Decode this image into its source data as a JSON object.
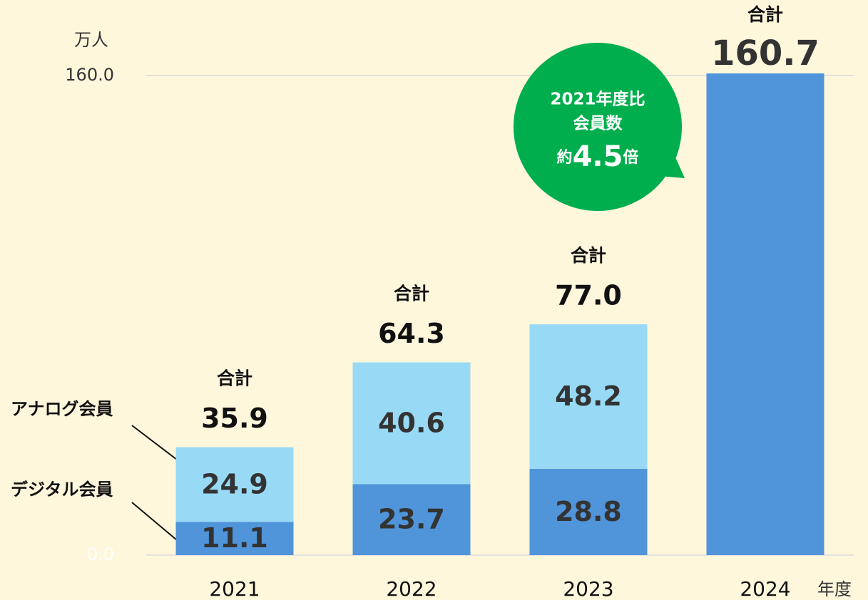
{
  "chart_data": {
    "type": "stacked_bar",
    "y_unit": "万人",
    "x_unit": "年度",
    "categories": [
      "2021",
      "2022",
      "2023",
      "2024"
    ],
    "series": [
      {
        "name": "デジタル会員",
        "color": "#5094d9",
        "values": [
          11.1,
          23.7,
          28.8,
          160.7
        ]
      },
      {
        "name": "アナログ会員",
        "color": "#98daf6",
        "values": [
          24.9,
          40.6,
          48.2,
          null
        ]
      }
    ],
    "total_caption": "合計",
    "totals": [
      35.9,
      64.3,
      77,
      160.7
    ],
    "totals_labels": [
      "35.9",
      "64.3",
      "77.0",
      "160.7"
    ],
    "ylim": [
      0,
      160
    ],
    "yticks": [
      {
        "value": 0,
        "label": "0.0"
      },
      {
        "value": 160,
        "label": "160.0"
      }
    ],
    "grid": true,
    "annotation": {
      "lines": [
        "2021年度比",
        "会員数"
      ],
      "prefix": "約",
      "value": "4.5",
      "suffix": "倍",
      "color": "#00ae4d"
    }
  }
}
